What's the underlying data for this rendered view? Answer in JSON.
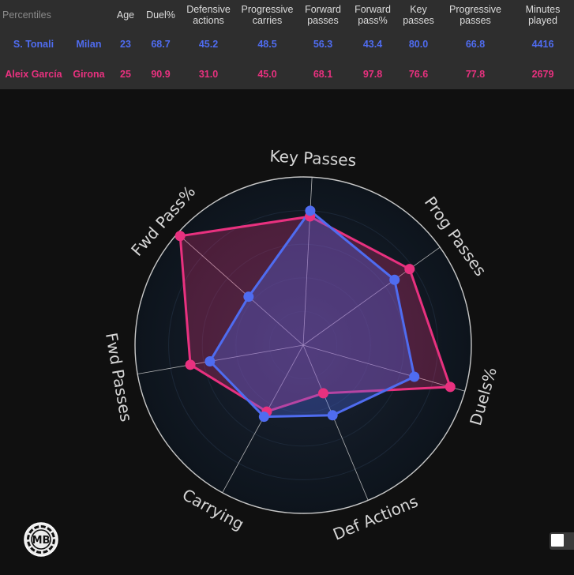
{
  "table": {
    "corner_label": "Percentiles",
    "headers": [
      "Age",
      "Duel%",
      "Defensive actions",
      "Progressive carries",
      "Forward passes",
      "Forward pass%",
      "Key passes",
      "Progressive passes",
      "Minutes played"
    ],
    "rows": [
      {
        "player": "S. Tonali",
        "team": "Milan",
        "color": "#4f6cf0",
        "values": [
          "23",
          "68.7",
          "45.2",
          "48.5",
          "56.3",
          "43.4",
          "80.0",
          "66.8",
          "4416"
        ]
      },
      {
        "player": "Aleix García",
        "team": "Girona",
        "color": "#e8317f",
        "values": [
          "25",
          "90.9",
          "31.0",
          "45.0",
          "68.1",
          "97.8",
          "76.6",
          "77.8",
          "2679"
        ]
      }
    ]
  },
  "chart_data": {
    "type": "radar",
    "axes": [
      "Key Passes",
      "Prog Passes",
      "Duels%",
      "Def Actions",
      "Carrying",
      "Fwd Passes",
      "Fwd Pass%"
    ],
    "range": [
      0,
      100
    ],
    "grid": true,
    "series": [
      {
        "name": "S. Tonali",
        "color": "#4f6cf0",
        "values": [
          80.0,
          66.8,
          68.7,
          45.2,
          48.5,
          56.3,
          43.4
        ]
      },
      {
        "name": "Aleix García",
        "color": "#e8317f",
        "values": [
          76.6,
          77.8,
          90.9,
          31.0,
          45.0,
          68.1,
          97.8
        ]
      }
    ]
  },
  "logo_text": "MB",
  "colors": {
    "background": "#101010",
    "table_bg": "#2e2e2e"
  }
}
